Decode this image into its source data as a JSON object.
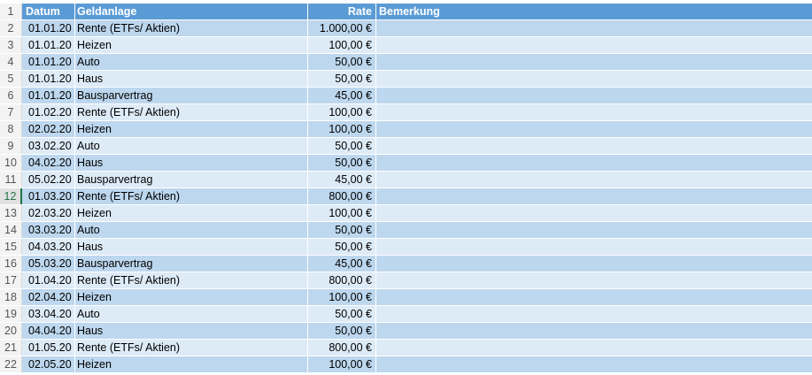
{
  "header": {
    "row_number": "1",
    "col_a": "Datum",
    "col_b": "Geldanlage",
    "col_c": "Rate",
    "col_d": "Bemerkung"
  },
  "rows": [
    {
      "n": "2",
      "datum": "01.01.20",
      "geldanlage": "Rente (ETFs/ Aktien)",
      "rate": "1.000,00 €",
      "bemerkung": ""
    },
    {
      "n": "3",
      "datum": "01.01.20",
      "geldanlage": "Heizen",
      "rate": "100,00 €",
      "bemerkung": ""
    },
    {
      "n": "4",
      "datum": "01.01.20",
      "geldanlage": "Auto",
      "rate": "50,00 €",
      "bemerkung": ""
    },
    {
      "n": "5",
      "datum": "01.01.20",
      "geldanlage": "Haus",
      "rate": "50,00 €",
      "bemerkung": ""
    },
    {
      "n": "6",
      "datum": "01.01.20",
      "geldanlage": "Bausparvertrag",
      "rate": "45,00 €",
      "bemerkung": ""
    },
    {
      "n": "7",
      "datum": "01.02.20",
      "geldanlage": "Rente (ETFs/ Aktien)",
      "rate": "100,00 €",
      "bemerkung": ""
    },
    {
      "n": "8",
      "datum": "02.02.20",
      "geldanlage": "Heizen",
      "rate": "100,00 €",
      "bemerkung": ""
    },
    {
      "n": "9",
      "datum": "03.02.20",
      "geldanlage": "Auto",
      "rate": "50,00 €",
      "bemerkung": ""
    },
    {
      "n": "10",
      "datum": "04.02.20",
      "geldanlage": "Haus",
      "rate": "50,00 €",
      "bemerkung": ""
    },
    {
      "n": "11",
      "datum": "05.02.20",
      "geldanlage": "Bausparvertrag",
      "rate": "45,00 €",
      "bemerkung": ""
    },
    {
      "n": "12",
      "datum": "01.03.20",
      "geldanlage": "Rente (ETFs/ Aktien)",
      "rate": "800,00 €",
      "bemerkung": ""
    },
    {
      "n": "13",
      "datum": "02.03.20",
      "geldanlage": "Heizen",
      "rate": "100,00 €",
      "bemerkung": ""
    },
    {
      "n": "14",
      "datum": "03.03.20",
      "geldanlage": "Auto",
      "rate": "50,00 €",
      "bemerkung": ""
    },
    {
      "n": "15",
      "datum": "04.03.20",
      "geldanlage": "Haus",
      "rate": "50,00 €",
      "bemerkung": ""
    },
    {
      "n": "16",
      "datum": "05.03.20",
      "geldanlage": "Bausparvertrag",
      "rate": "45,00 €",
      "bemerkung": ""
    },
    {
      "n": "17",
      "datum": "01.04.20",
      "geldanlage": "Rente (ETFs/ Aktien)",
      "rate": "800,00 €",
      "bemerkung": ""
    },
    {
      "n": "18",
      "datum": "02.04.20",
      "geldanlage": "Heizen",
      "rate": "100,00 €",
      "bemerkung": ""
    },
    {
      "n": "19",
      "datum": "03.04.20",
      "geldanlage": "Auto",
      "rate": "50,00 €",
      "bemerkung": ""
    },
    {
      "n": "20",
      "datum": "04.04.20",
      "geldanlage": "Haus",
      "rate": "50,00 €",
      "bemerkung": ""
    },
    {
      "n": "21",
      "datum": "01.05.20",
      "geldanlage": "Rente (ETFs/ Aktien)",
      "rate": "800,00 €",
      "bemerkung": ""
    },
    {
      "n": "22",
      "datum": "02.05.20",
      "geldanlage": "Heizen",
      "rate": "100,00 €",
      "bemerkung": ""
    }
  ],
  "active_row": "12",
  "colors": {
    "header_fill": "#5b9bd5",
    "band_dark": "#bdd7ee",
    "band_light": "#ddebf7",
    "active_accent": "#217346"
  }
}
